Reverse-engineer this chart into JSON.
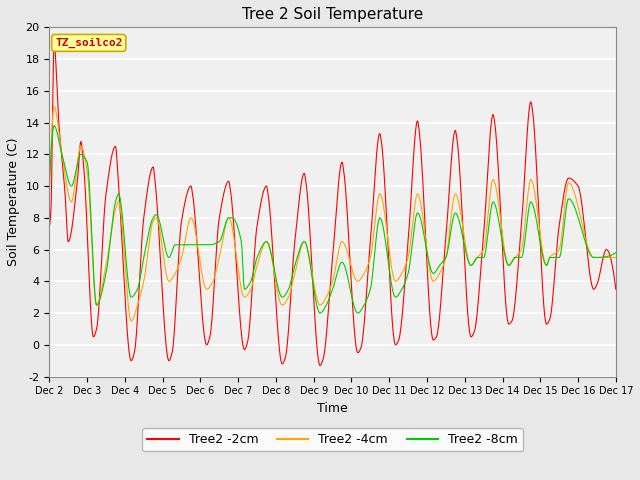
{
  "title": "Tree 2 Soil Temperature",
  "ylabel": "Soil Temperature (C)",
  "xlabel": "Time",
  "ylim": [
    -2,
    20
  ],
  "xlim": [
    0,
    360
  ],
  "xtick_labels": [
    "Dec 2",
    "Dec 3",
    "Dec 4",
    "Dec 5",
    "Dec 6",
    "Dec 7",
    "Dec 8",
    "Dec 9",
    "Dec 10",
    "Dec 11",
    "Dec 12",
    "Dec 13",
    "Dec 14",
    "Dec 15",
    "Dec 16",
    "Dec 17"
  ],
  "xtick_positions": [
    0,
    24,
    48,
    72,
    96,
    120,
    144,
    168,
    192,
    216,
    240,
    264,
    288,
    312,
    336,
    360
  ],
  "colors": {
    "2cm": "#FF0000",
    "4cm": "#FFA500",
    "8cm": "#00CC00"
  },
  "annotation_text": "TZ_soilco2",
  "annotation_bg": "#FFFF99",
  "annotation_border": "#CCAA00",
  "title_fontsize": 11,
  "label_fontsize": 9,
  "tick_fontsize": 8
}
